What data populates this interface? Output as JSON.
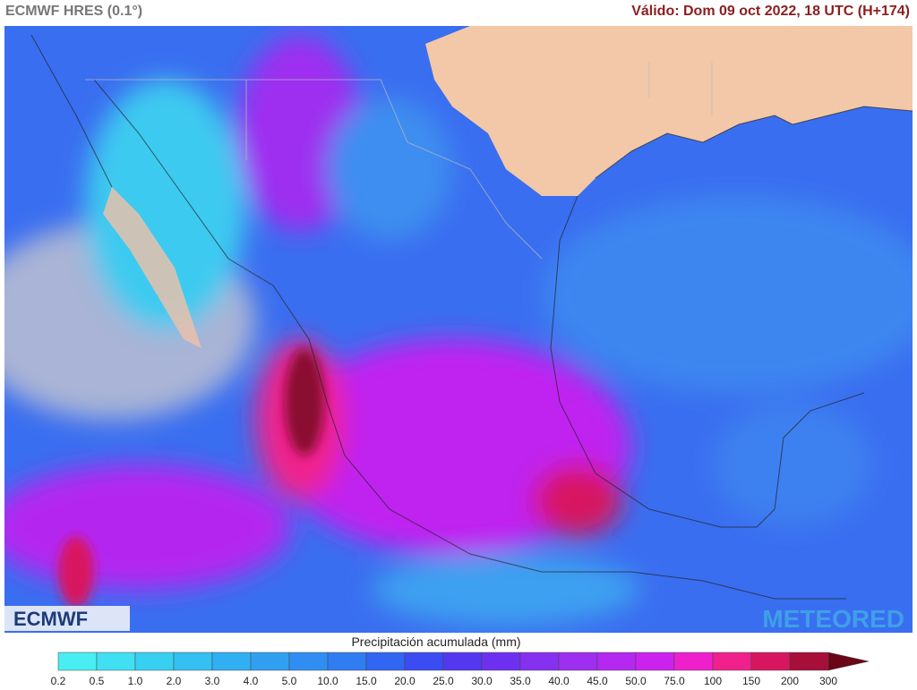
{
  "header": {
    "title": "ECMWF HRES (0.1°)",
    "valid": "Válido: Dom 09 oct 2022, 18 UTC (H+174)"
  },
  "logos": {
    "left": "ECMWF",
    "right": "METEORED"
  },
  "legend": {
    "title": "Precipitación acumulada (mm)",
    "ticks": [
      "0.2",
      "0.5",
      "1.0",
      "2.0",
      "3.0",
      "4.0",
      "5.0",
      "10.0",
      "15.0",
      "20.0",
      "25.0",
      "30.0",
      "35.0",
      "40.0",
      "45.0",
      "50.0",
      "75.0",
      "100",
      "150",
      "200",
      "300"
    ],
    "colors": [
      "#48eef2",
      "#40e0f2",
      "#38d0f2",
      "#34c0f2",
      "#30b0f2",
      "#309ff2",
      "#308ef2",
      "#307cf2",
      "#3066f2",
      "#3a4cf2",
      "#5438f0",
      "#6e30f0",
      "#8630f0",
      "#9e2ef0",
      "#b428f0",
      "#cc22ee",
      "#ee20cc",
      "#f0208c",
      "#d81660",
      "#a80e3a",
      "#6a0616"
    ]
  }
}
